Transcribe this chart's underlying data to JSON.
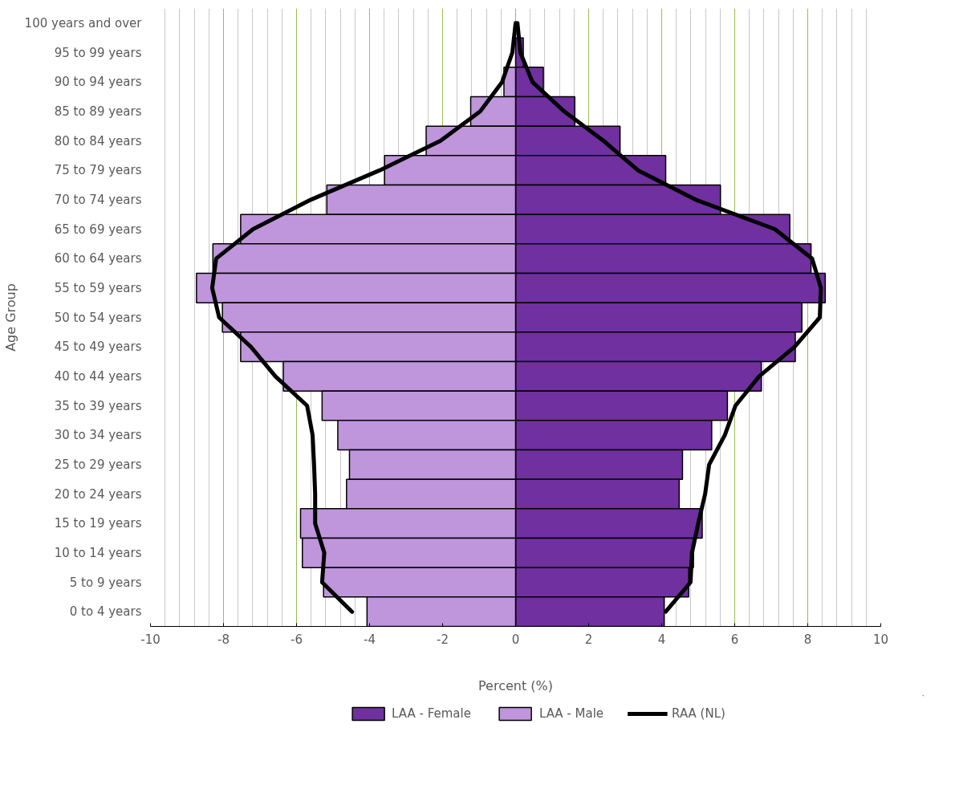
{
  "chart_data": {
    "type": "bar",
    "orientation": "horizontal",
    "xlabel": "Percent (%)",
    "ylabel": "Age Group",
    "categories": [
      "100 years and over",
      "95 to 99 years",
      "90 to 94 years",
      "85 to 89 years",
      "80 to 84 years",
      "75 to 79 years",
      "70 to 74 years",
      "65 to 69 years",
      "60 to 64 years",
      "55 to 59 years",
      "50 to 54 years",
      "45 to 49 years",
      "40 to 44 years",
      "35 to 39 years",
      "30 to 34 years",
      "25 to 29 years",
      "20 to 24 years",
      "15 to 19 years",
      "10 to 14 years",
      "5 to 9 years",
      "0 to 4 years"
    ],
    "series": [
      {
        "name": "LAA - Female",
        "color": "#7030a0",
        "values": [
          null,
          0.21,
          0.76,
          1.62,
          2.86,
          4.11,
          5.61,
          7.51,
          8.09,
          8.48,
          7.84,
          7.66,
          6.73,
          5.8,
          5.37,
          4.57,
          4.48,
          5.11,
          4.87,
          4.74,
          4.07
        ]
      },
      {
        "name": "LAA - Male",
        "color": "#bf95dc",
        "values": [
          null,
          null,
          -0.32,
          -1.23,
          -2.45,
          -3.59,
          -5.17,
          -7.53,
          -8.29,
          -8.74,
          -8.03,
          -7.53,
          -6.36,
          -5.3,
          -4.87,
          -4.55,
          -4.63,
          -5.89,
          -5.84,
          -5.26,
          -4.07
        ]
      },
      {
        "name": "RAA (NL)",
        "type": "line",
        "color": "#000000",
        "values": [
          0.0,
          -0.09,
          -0.37,
          -0.97,
          -2.06,
          -3.72,
          -5.61,
          -7.19,
          -8.2,
          -8.31,
          -8.12,
          -7.25,
          -6.58,
          -5.71,
          -5.56,
          -5.52,
          -5.49,
          -5.49,
          -5.24,
          -5.3,
          -4.48
        ]
      },
      {
        "type": "line",
        "color": "#000000",
        "values": [
          0.05,
          0.13,
          0.46,
          1.33,
          2.41,
          3.35,
          4.93,
          7.1,
          8.12,
          8.36,
          8.33,
          7.64,
          6.67,
          6.02,
          5.73,
          5.3,
          5.19,
          5.0,
          4.83,
          4.79,
          4.11
        ]
      }
    ],
    "xlim": [
      -10,
      10
    ],
    "xticks": [
      -10,
      -8,
      -6,
      -4,
      -2,
      0,
      2,
      4,
      6,
      8,
      10
    ],
    "grid": "x",
    "legend": "bottom",
    "stacked": true
  }
}
